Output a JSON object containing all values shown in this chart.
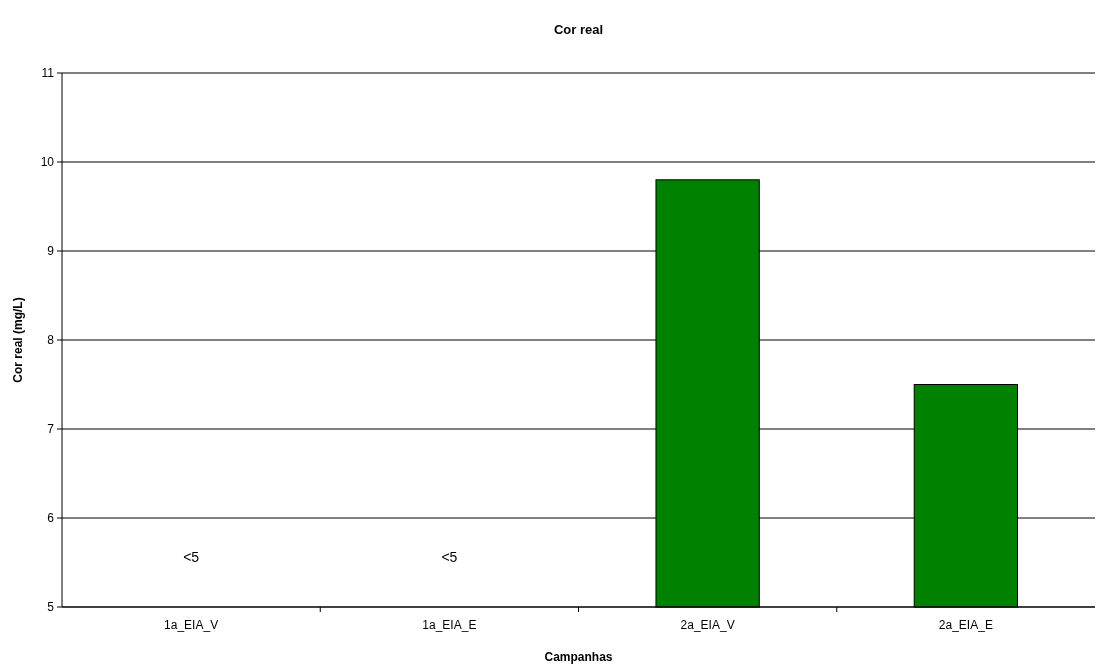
{
  "chart_data": {
    "type": "bar",
    "title": "Cor real",
    "xlabel": "Campanhas",
    "ylabel": "Cor real (mg/L)",
    "categories": [
      "1a_EIA_V",
      "1a_EIA_E",
      "2a_EIA_V",
      "2a_EIA_E"
    ],
    "values": [
      null,
      null,
      9.8,
      7.5
    ],
    "color": "#008000",
    "value_labels": [
      "<5",
      "<5",
      null,
      null
    ],
    "ylim": [
      5,
      11
    ],
    "yticks": [
      5,
      6,
      7,
      8,
      9,
      10,
      11
    ],
    "grid": "y"
  }
}
